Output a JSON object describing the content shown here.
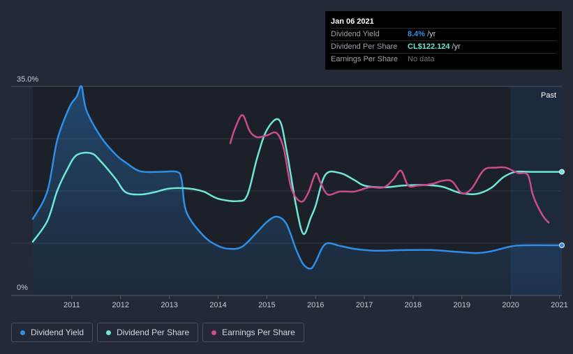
{
  "tooltip": {
    "date": "Jan 06 2021",
    "rows": [
      {
        "label": "Dividend Yield",
        "value": "8.4%",
        "unit": "/yr"
      },
      {
        "label": "Dividend Per Share",
        "value": "CL$122.124",
        "unit": "/yr"
      },
      {
        "label": "Earnings Per Share",
        "value": "No data",
        "unit": ""
      }
    ]
  },
  "legend": [
    {
      "label": "Dividend Yield",
      "color": "#2f8fe8"
    },
    {
      "label": "Dividend Per Share",
      "color": "#6ee8d4"
    },
    {
      "label": "Earnings Per Share",
      "color": "#cc4b8c"
    }
  ],
  "chart_data": {
    "type": "line",
    "title": "",
    "xlabel": "",
    "ylabel": "",
    "ylim": [
      0,
      35
    ],
    "y_tick_labels": [
      "35.0%",
      "0%"
    ],
    "x_tick_labels": [
      "2011",
      "2012",
      "2013",
      "2014",
      "2015",
      "2016",
      "2017",
      "2018",
      "2019",
      "2020",
      "2021"
    ],
    "xlim": [
      2010.2,
      2021.05
    ],
    "past_label": "Past",
    "past_start": 2020.0,
    "series": [
      {
        "name": "Dividend Yield",
        "color": "#2f8fe8",
        "fill": true,
        "points": [
          [
            2010.2,
            12.8
          ],
          [
            2010.5,
            17.5
          ],
          [
            2010.7,
            26
          ],
          [
            2010.95,
            31.5
          ],
          [
            2011.1,
            33.3
          ],
          [
            2011.2,
            35
          ],
          [
            2011.3,
            31
          ],
          [
            2011.6,
            26.5
          ],
          [
            2011.9,
            23.6
          ],
          [
            2012.1,
            22.3
          ],
          [
            2012.4,
            20.8
          ],
          [
            2012.8,
            20.7
          ],
          [
            2013.15,
            20.7
          ],
          [
            2013.25,
            19.5
          ],
          [
            2013.35,
            14
          ],
          [
            2013.7,
            10
          ],
          [
            2014.0,
            8.3
          ],
          [
            2014.25,
            7.8
          ],
          [
            2014.5,
            8.2
          ],
          [
            2014.8,
            10.6
          ],
          [
            2015.0,
            12.3
          ],
          [
            2015.2,
            13.2
          ],
          [
            2015.4,
            12
          ],
          [
            2015.6,
            7.7
          ],
          [
            2015.75,
            5.2
          ],
          [
            2015.9,
            4.5
          ],
          [
            2016.0,
            5.6
          ],
          [
            2016.2,
            8.6
          ],
          [
            2016.5,
            8.3
          ],
          [
            2016.8,
            7.8
          ],
          [
            2017.2,
            7.5
          ],
          [
            2017.8,
            7.6
          ],
          [
            2018.4,
            7.6
          ],
          [
            2018.9,
            7.3
          ],
          [
            2019.3,
            7.1
          ],
          [
            2019.6,
            7.4
          ],
          [
            2020.0,
            8.2
          ],
          [
            2020.3,
            8.4
          ],
          [
            2021.05,
            8.4
          ]
        ],
        "end_marker": true
      },
      {
        "name": "Dividend Per Share",
        "color": "#6ee8d4",
        "fill": false,
        "points": [
          [
            2010.2,
            9
          ],
          [
            2010.5,
            12.5
          ],
          [
            2010.7,
            17.5
          ],
          [
            2010.9,
            21
          ],
          [
            2011.1,
            23.5
          ],
          [
            2011.4,
            23.8
          ],
          [
            2011.6,
            22.4
          ],
          [
            2011.9,
            19.5
          ],
          [
            2012.1,
            17.3
          ],
          [
            2012.4,
            16.9
          ],
          [
            2012.7,
            17.3
          ],
          [
            2013.0,
            17.9
          ],
          [
            2013.4,
            17.9
          ],
          [
            2013.7,
            17.4
          ],
          [
            2014.0,
            16.2
          ],
          [
            2014.4,
            15.8
          ],
          [
            2014.6,
            16.8
          ],
          [
            2014.8,
            23
          ],
          [
            2015.0,
            27.7
          ],
          [
            2015.25,
            29.4
          ],
          [
            2015.4,
            24.5
          ],
          [
            2015.6,
            15
          ],
          [
            2015.75,
            10.3
          ],
          [
            2015.9,
            13
          ],
          [
            2016.0,
            15
          ],
          [
            2016.2,
            20.2
          ],
          [
            2016.5,
            20.5
          ],
          [
            2016.8,
            19.3
          ],
          [
            2017.0,
            18.4
          ],
          [
            2017.4,
            18.1
          ],
          [
            2017.8,
            18.4
          ],
          [
            2018.2,
            18.5
          ],
          [
            2018.6,
            18.2
          ],
          [
            2018.95,
            17.2
          ],
          [
            2019.3,
            17
          ],
          [
            2019.6,
            18
          ],
          [
            2019.85,
            19.8
          ],
          [
            2020.1,
            20.7
          ],
          [
            2020.4,
            20.7
          ],
          [
            2021.05,
            20.7
          ]
        ],
        "end_marker": true
      },
      {
        "name": "Earnings Per Share",
        "color": "#cc4b8c",
        "fill": false,
        "points": [
          [
            2014.25,
            25.5
          ],
          [
            2014.35,
            28
          ],
          [
            2014.5,
            30.2
          ],
          [
            2014.65,
            27.5
          ],
          [
            2014.8,
            26.5
          ],
          [
            2015.0,
            26.8
          ],
          [
            2015.2,
            27.2
          ],
          [
            2015.35,
            24.5
          ],
          [
            2015.5,
            18
          ],
          [
            2015.7,
            15.7
          ],
          [
            2015.85,
            17.2
          ],
          [
            2016.0,
            20.4
          ],
          [
            2016.1,
            18.9
          ],
          [
            2016.25,
            16.9
          ],
          [
            2016.5,
            17.4
          ],
          [
            2016.8,
            17.4
          ],
          [
            2017.1,
            18.1
          ],
          [
            2017.4,
            18.1
          ],
          [
            2017.6,
            19.5
          ],
          [
            2017.75,
            20.9
          ],
          [
            2017.9,
            18.4
          ],
          [
            2018.1,
            18.4
          ],
          [
            2018.4,
            18.7
          ],
          [
            2018.6,
            19.2
          ],
          [
            2018.8,
            19.1
          ],
          [
            2019.0,
            17.1
          ],
          [
            2019.2,
            17.9
          ],
          [
            2019.45,
            21
          ],
          [
            2019.7,
            21.4
          ],
          [
            2019.9,
            21.4
          ],
          [
            2020.15,
            20.5
          ],
          [
            2020.35,
            20.2
          ],
          [
            2020.45,
            17
          ],
          [
            2020.55,
            15
          ],
          [
            2020.68,
            13.1
          ],
          [
            2020.78,
            12.2
          ]
        ],
        "end_marker": false
      }
    ]
  }
}
